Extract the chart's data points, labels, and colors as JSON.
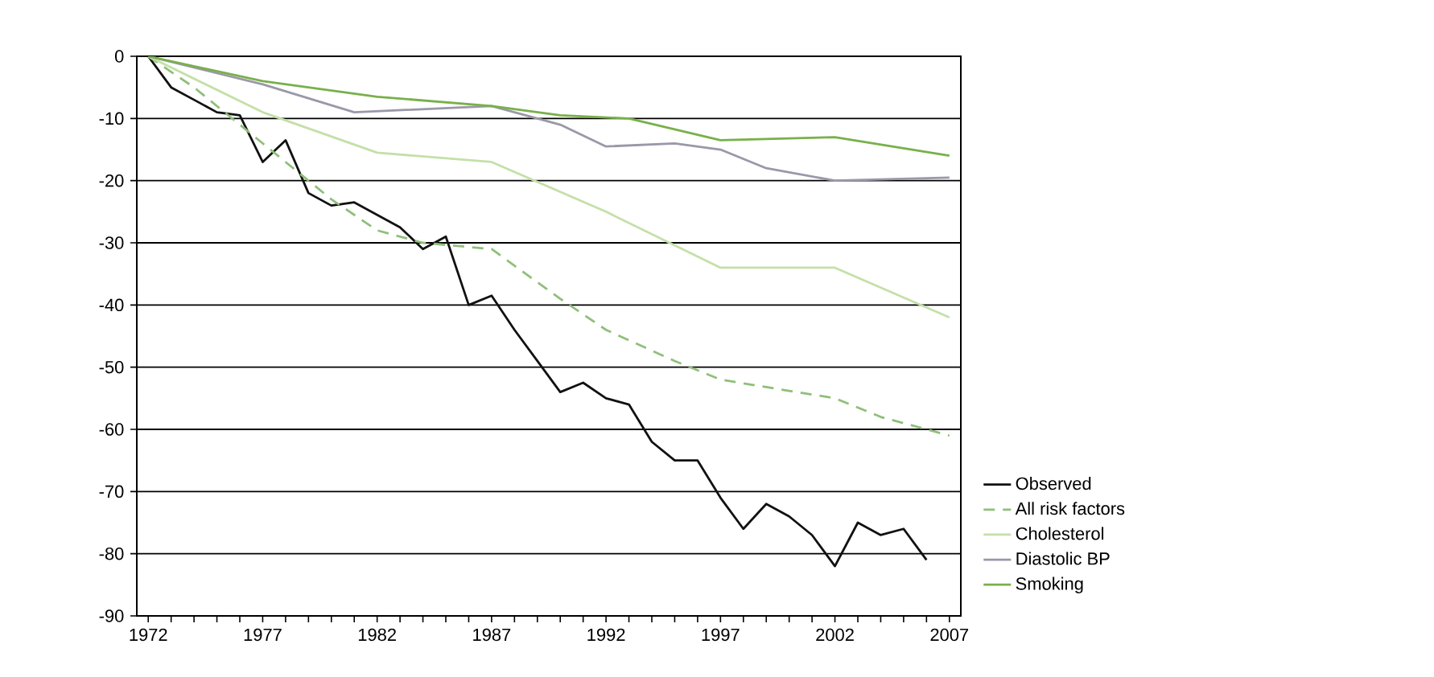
{
  "chart_data": {
    "type": "line",
    "xlim": [
      1971.5,
      2007.5
    ],
    "xticks": [
      {
        "value": 1972,
        "label": "1972"
      },
      {
        "value": 1973,
        "label": null
      },
      {
        "value": 1974,
        "label": null
      },
      {
        "value": 1975,
        "label": null
      },
      {
        "value": 1976,
        "label": null
      },
      {
        "value": 1977,
        "label": "1977"
      },
      {
        "value": 1978,
        "label": null
      },
      {
        "value": 1979,
        "label": null
      },
      {
        "value": 1980,
        "label": null
      },
      {
        "value": 1981,
        "label": null
      },
      {
        "value": 1982,
        "label": "1982"
      },
      {
        "value": 1983,
        "label": null
      },
      {
        "value": 1984,
        "label": null
      },
      {
        "value": 1985,
        "label": null
      },
      {
        "value": 1986,
        "label": null
      },
      {
        "value": 1987,
        "label": "1987"
      },
      {
        "value": 1988,
        "label": null
      },
      {
        "value": 1989,
        "label": null
      },
      {
        "value": 1990,
        "label": null
      },
      {
        "value": 1991,
        "label": null
      },
      {
        "value": 1992,
        "label": "1992"
      },
      {
        "value": 1993,
        "label": null
      },
      {
        "value": 1994,
        "label": null
      },
      {
        "value": 1995,
        "label": null
      },
      {
        "value": 1996,
        "label": null
      },
      {
        "value": 1997,
        "label": "1997"
      },
      {
        "value": 1998,
        "label": null
      },
      {
        "value": 1999,
        "label": null
      },
      {
        "value": 2000,
        "label": null
      },
      {
        "value": 2001,
        "label": null
      },
      {
        "value": 2002,
        "label": "2002"
      },
      {
        "value": 2003,
        "label": null
      },
      {
        "value": 2004,
        "label": null
      },
      {
        "value": 2005,
        "label": null
      },
      {
        "value": 2006,
        "label": null
      },
      {
        "value": 2007,
        "label": "2007"
      }
    ],
    "ylim": [
      -90,
      0
    ],
    "yticks": [
      0,
      -10,
      -20,
      -30,
      -40,
      -50,
      -60,
      -70,
      -80,
      -90
    ],
    "grid": "y",
    "legend": "right",
    "marker": "none",
    "series": [
      {
        "name": "Observed",
        "color": "#111111",
        "line_style": "solid",
        "x": [
          1972,
          1973,
          1974,
          1975,
          1976,
          1977,
          1978,
          1979,
          1980,
          1981,
          1982,
          1983,
          1984,
          1985,
          1986,
          1987,
          1988,
          1989,
          1990,
          1991,
          1992,
          1993,
          1994,
          1995,
          1996,
          1997,
          1998,
          1999,
          2000,
          2001,
          2002,
          2003,
          2004,
          2005,
          2006
        ],
        "values": [
          0,
          -5,
          -7,
          -9,
          -9.5,
          -17,
          -13.5,
          -22,
          -24,
          -23.5,
          -25.5,
          -27.5,
          -31,
          -29,
          -40,
          -38.5,
          -44,
          -49,
          -54,
          -52.5,
          -55,
          -56,
          -62,
          -65,
          -65,
          -71,
          -76,
          -72,
          -74,
          -77,
          -82,
          -75,
          -77,
          -76,
          -81
        ]
      },
      {
        "name": "All risk factors",
        "color": "#8fbf7a",
        "line_style": "dashed",
        "x": [
          1972,
          1974,
          1977,
          1980,
          1982,
          1984,
          1987,
          1990,
          1992,
          1995,
          1997,
          2002,
          2004,
          2007
        ],
        "values": [
          0,
          -5,
          -14,
          -23,
          -28,
          -30,
          -31,
          -39,
          -44,
          -49,
          -52,
          -55,
          -58,
          -61
        ]
      },
      {
        "name": "Cholesterol",
        "color": "#c4e0a8",
        "line_style": "solid",
        "x": [
          1972,
          1977,
          1982,
          1987,
          1992,
          1997,
          2002,
          2007
        ],
        "values": [
          0,
          -9,
          -15.5,
          -17,
          -25,
          -34,
          -34,
          -42
        ]
      },
      {
        "name": "Diastolic BP",
        "color": "#9a98a8",
        "line_style": "solid",
        "x": [
          1972,
          1977,
          1981,
          1987,
          1990,
          1992,
          1995,
          1997,
          1999,
          2002,
          2007
        ],
        "values": [
          0,
          -4.5,
          -9,
          -8,
          -11,
          -14.5,
          -14,
          -15,
          -18,
          -20,
          -19.5
        ]
      },
      {
        "name": "Smoking",
        "color": "#78b04a",
        "line_style": "solid",
        "x": [
          1972,
          1977,
          1982,
          1987,
          1990,
          1993,
          1997,
          2002,
          2007
        ],
        "values": [
          0,
          -4,
          -6.5,
          -8,
          -9.5,
          -10,
          -13.5,
          -13,
          -16
        ]
      }
    ]
  }
}
